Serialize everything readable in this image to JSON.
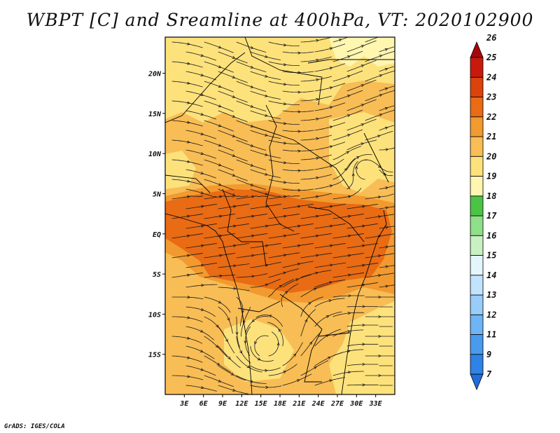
{
  "title": "WBPT [C] and Sreamline at 400hPa, VT: 2020102900",
  "footer": "GrADS: IGES/COLA",
  "map": {
    "lon_range": [
      0,
      36
    ],
    "lat_range": [
      -20,
      24.5
    ],
    "lon_ticks": [
      {
        "value": 3,
        "label": "3E"
      },
      {
        "value": 6,
        "label": "6E"
      },
      {
        "value": 9,
        "label": "9E"
      },
      {
        "value": 12,
        "label": "12E"
      },
      {
        "value": 15,
        "label": "15E"
      },
      {
        "value": 18,
        "label": "18E"
      },
      {
        "value": 21,
        "label": "21E"
      },
      {
        "value": 24,
        "label": "24E"
      },
      {
        "value": 27,
        "label": "27E"
      },
      {
        "value": 30,
        "label": "30E"
      },
      {
        "value": 33,
        "label": "33E"
      }
    ],
    "lat_ticks": [
      {
        "value": 20,
        "label": "20N"
      },
      {
        "value": 15,
        "label": "15N"
      },
      {
        "value": 10,
        "label": "10N"
      },
      {
        "value": 5,
        "label": "5N"
      },
      {
        "value": 0,
        "label": "EQ"
      },
      {
        "value": -5,
        "label": "5S"
      },
      {
        "value": -10,
        "label": "10S"
      },
      {
        "value": -15,
        "label": "15S"
      }
    ]
  },
  "colorbar": {
    "levels": [
      "7",
      "9",
      "11",
      "12",
      "13",
      "14",
      "15",
      "16",
      "17",
      "18",
      "19",
      "20",
      "21",
      "22",
      "23",
      "24",
      "25",
      "26"
    ],
    "colors": [
      "#1e6edb",
      "#2f83e6",
      "#4a9bee",
      "#6fb4f5",
      "#98cdfa",
      "#c2e3fd",
      "#e4f6fb",
      "#c9f0c2",
      "#8fde88",
      "#4bc446",
      "#fff6b0",
      "#fde27c",
      "#f8bd55",
      "#f29a2f",
      "#e96b14",
      "#db420c",
      "#c81a0c",
      "#a8060a"
    ]
  },
  "colors": {
    "band_19_20": "#fde27c",
    "band_20_21": "#f8bd55",
    "band_21_22": "#f29a2f",
    "band_22_23": "#e96b14",
    "band_18_19": "#fff6b0"
  }
}
